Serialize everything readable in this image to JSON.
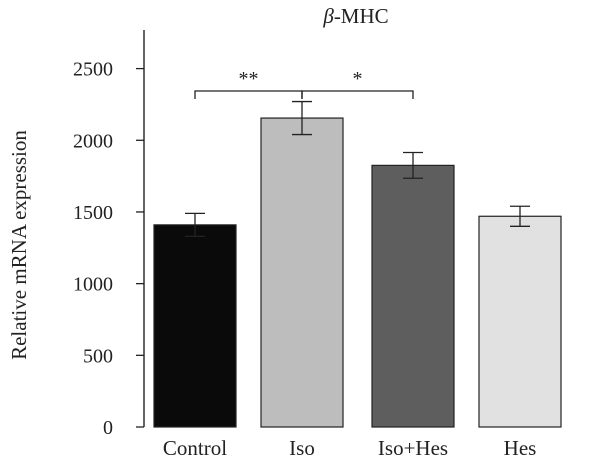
{
  "chart_data": {
    "type": "bar",
    "title": {
      "symbol": "β",
      "rest": "-MHC"
    },
    "xlabel": "",
    "ylabel": "Relative mRNA expression",
    "ylim": [
      0,
      2600
    ],
    "yticks": [
      0,
      500,
      1000,
      1500,
      2000,
      2500
    ],
    "categories": [
      "Control",
      "Iso",
      "Iso+Hes",
      "Hes"
    ],
    "values": [
      1410,
      2155,
      1825,
      1470
    ],
    "errors": [
      80,
      115,
      90,
      70
    ],
    "bar_colors": [
      "#0a0a0a",
      "#bdbdbd",
      "#5e5e5e",
      "#e1e1e1"
    ],
    "grid": false,
    "significance": [
      {
        "from": 0,
        "to": 1,
        "label": "**"
      },
      {
        "from": 1,
        "to": 2,
        "label": "*"
      }
    ]
  }
}
